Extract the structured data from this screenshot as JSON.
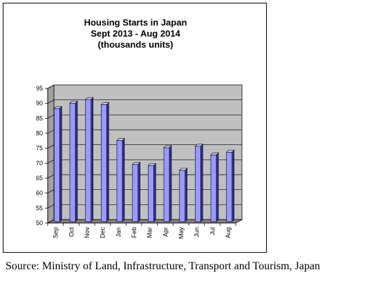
{
  "chart_data": {
    "type": "bar",
    "title_lines": [
      "Housing Starts in Japan",
      "Sept 2013 - Aug 2014",
      "(thousands units)"
    ],
    "categories": [
      "Sep",
      "Oct",
      "Nov",
      "Dec",
      "Jan",
      "Feb",
      "Mar",
      "Apr",
      "May",
      "Jun",
      "Jul",
      "Aug"
    ],
    "values": [
      88.5,
      90.3,
      91.5,
      89.8,
      77.8,
      69.8,
      69.4,
      75.4,
      67.8,
      75.9,
      73.0,
      73.9
    ],
    "y_ticks": [
      "50",
      "55",
      "60",
      "65",
      "70",
      "75",
      "80",
      "85",
      "90",
      "95"
    ],
    "ylim": [
      50,
      95
    ],
    "y_step": 5,
    "grid": true,
    "legend": "none",
    "style": "3d-column",
    "colors": {
      "bar_front": "#9999ff",
      "bar_side": "#333399",
      "bar_top": "#ccccff",
      "wall": "#c0c0c0",
      "floor": "#808080"
    }
  },
  "source": "Source: Ministry of Land, Infrastructure, Transport and Tourism, Japan"
}
